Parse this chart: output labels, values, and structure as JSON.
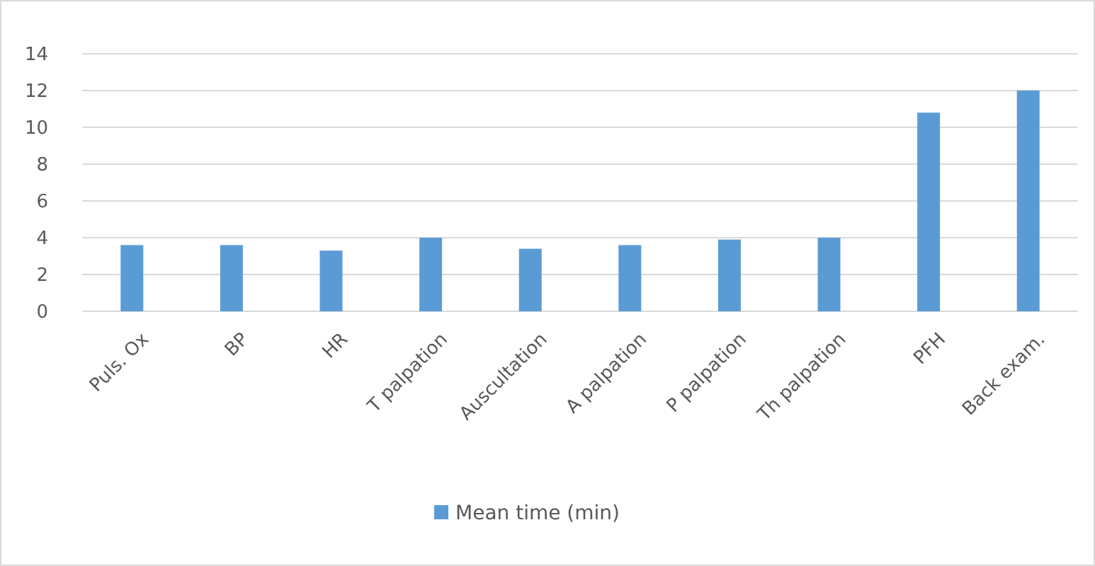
{
  "chart_data": {
    "type": "bar",
    "categories": [
      "Puls. Ox",
      "BP",
      "HR",
      "T palpation",
      "Auscultation",
      "A palpation",
      "P palpation",
      "Th palpation",
      "PFH",
      "Back exam."
    ],
    "series": [
      {
        "name": "Mean time (min)",
        "color": "#5b9bd5",
        "values": [
          3.6,
          3.6,
          3.3,
          4.0,
          3.4,
          3.6,
          3.9,
          4.0,
          10.8,
          12.0
        ]
      }
    ],
    "ylim": [
      0,
      14
    ],
    "yticks": [
      0,
      2,
      4,
      6,
      8,
      10,
      12,
      14
    ],
    "grid": "y",
    "legend": "bottom"
  }
}
